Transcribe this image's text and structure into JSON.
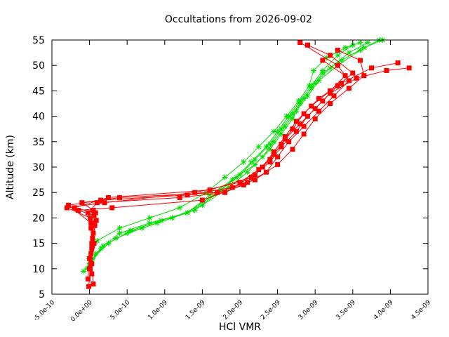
{
  "chart_data": {
    "type": "line",
    "title": "Occultations from 2026-09-02",
    "xlabel": "HCl VMR",
    "ylabel": "Altitude (km)",
    "xlim": [
      -5e-10,
      4.5e-09
    ],
    "ylim": [
      5,
      55
    ],
    "x_ticks": [
      -5e-10,
      0,
      5e-10,
      1e-09,
      1.5e-09,
      2e-09,
      2.5e-09,
      3e-09,
      3.5e-09,
      4e-09,
      4.5e-09
    ],
    "x_tick_labels": [
      "-5.0e-10",
      "0.0e+00",
      "5.0e-10",
      "1.0e-09",
      "1.5e-09",
      "2.0e-09",
      "2.5e-09",
      "3.0e-09",
      "3.5e-09",
      "4.0e-09",
      "4.5e-09"
    ],
    "y_ticks": [
      5,
      10,
      15,
      20,
      25,
      30,
      35,
      40,
      45,
      50,
      55
    ],
    "y_tick_labels": [
      "5",
      "10",
      "15",
      "20",
      "25",
      "30",
      "35",
      "40",
      "45",
      "50",
      "55"
    ],
    "grid": false,
    "legend": "none",
    "colors": {
      "green": "#00e000",
      "red": "#ff0000"
    },
    "series": [
      {
        "color": "green",
        "marker": "star",
        "x": [
          -8e-11,
          0,
          1.5e-10,
          4e-10,
          8e-10,
          1.3e-09,
          1.7e-09,
          1.95e-09,
          2.15e-09,
          2.35e-09,
          2.5e-09,
          2.65e-09,
          2.8e-09,
          2.95e-09,
          3.1e-09,
          3.3e-09,
          3.5e-09
        ],
        "y": [
          9.5,
          11,
          14,
          17,
          19,
          21,
          25,
          28,
          31,
          34,
          37,
          40,
          43,
          46,
          49,
          52,
          54
        ]
      },
      {
        "color": "green",
        "marker": "star",
        "x": [
          -3e-11,
          4e-11,
          2.5e-10,
          5.5e-10,
          9.5e-10,
          1.4e-09,
          1.75e-09,
          2e-09,
          2.2e-09,
          2.4e-09,
          2.55e-09,
          2.7e-09,
          2.85e-09,
          3e-09,
          3.2e-09,
          3.45e-09,
          3.7e-09
        ],
        "y": [
          10,
          12,
          15,
          17.5,
          19.5,
          21.5,
          25.5,
          28.5,
          31.5,
          34.5,
          37.5,
          40.5,
          43.5,
          46.5,
          49.5,
          52.5,
          54.5
        ]
      },
      {
        "color": "green",
        "marker": "star",
        "x": [
          0,
          8e-11,
          3.5e-10,
          7e-10,
          1.1e-09,
          1.5e-09,
          1.85e-09,
          2.1e-09,
          2.3e-09,
          2.45e-09,
          2.6e-09,
          2.75e-09,
          2.9e-09,
          3.05e-09,
          3.3e-09,
          3.6e-09,
          3.85e-09
        ],
        "y": [
          10.5,
          13,
          16,
          18,
          20,
          22.5,
          26,
          29,
          32,
          35,
          38,
          41,
          44,
          47,
          50,
          53,
          55
        ]
      },
      {
        "color": "green",
        "marker": "star",
        "x": [
          2e-11,
          1.8e-10,
          5e-10,
          9e-10,
          1.3e-09,
          1.6e-09,
          1.9e-09,
          2.2e-09,
          2.4e-09,
          2.55e-09,
          2.7e-09,
          2.8e-09,
          2.95e-09,
          3.1e-09,
          3.35e-09,
          3.65e-09,
          3.9e-09
        ],
        "y": [
          11,
          14.5,
          17,
          19,
          21,
          24.5,
          27.5,
          30.5,
          33.5,
          36.5,
          39.5,
          42.5,
          45.5,
          48.5,
          51,
          53.5,
          55
        ]
      },
      {
        "color": "green",
        "marker": "star",
        "x": [
          -1e-11,
          1e-10,
          4e-10,
          8e-10,
          1.2e-09,
          1.55e-09,
          1.8e-09,
          2.05e-09,
          2.25e-09,
          2.45e-09,
          2.62e-09,
          2.78e-09,
          2.92e-09,
          2.98e-09,
          3.15e-09,
          3.4e-09,
          3.6e-09
        ],
        "y": [
          12,
          15.5,
          18,
          20,
          22,
          25,
          28,
          31,
          34,
          37,
          40,
          43,
          46,
          49,
          51.5,
          53.5,
          54.5
        ]
      },
      {
        "color": "red",
        "marker": "square",
        "x": [
          -1e-11,
          1e-11,
          3e-11,
          2e-11,
          -2e-11,
          1e-10,
          1.2e-09,
          1.8e-09,
          2.1e-09,
          2.3e-09,
          2.45e-09,
          2.6e-09,
          2.75e-09,
          2.95e-09,
          3.2e-09,
          3.4e-09,
          3.1e-09
        ],
        "y": [
          6.5,
          10,
          14,
          18,
          21,
          23,
          24,
          25,
          27,
          30,
          33,
          36,
          39,
          42,
          45,
          48,
          51
        ]
      },
      {
        "color": "red",
        "marker": "square",
        "x": [
          5e-11,
          3e-11,
          6e-11,
          2e-11,
          -2.8e-10,
          1.5e-10,
          1.3e-09,
          1.9e-09,
          2.2e-09,
          2.4e-09,
          2.55e-09,
          2.7e-09,
          2.85e-09,
          3.05e-09,
          3.35e-09,
          3.75e-09,
          4.1e-09
        ],
        "y": [
          7,
          11,
          15,
          19,
          22.5,
          23.5,
          24.5,
          26,
          28.5,
          31.5,
          34.5,
          37.5,
          40.5,
          43.5,
          46.5,
          49.5,
          50.5
        ]
      },
      {
        "color": "red",
        "marker": "square",
        "x": [
          -2e-11,
          0,
          4e-11,
          1e-11,
          -3e-10,
          2e-10,
          1.4e-09,
          2e-09,
          2.25e-09,
          2.45e-09,
          2.6e-09,
          2.8e-09,
          3e-09,
          3.2e-09,
          3.55e-09,
          3.95e-09,
          4.25e-09
        ],
        "y": [
          8,
          12,
          16,
          20,
          22,
          23,
          25,
          27,
          29.5,
          32.5,
          35.5,
          38.5,
          41.5,
          44.5,
          47.5,
          49,
          49.5
        ]
      },
      {
        "color": "red",
        "marker": "square",
        "x": [
          3e-11,
          2e-11,
          5e-11,
          6e-11,
          -1.5e-10,
          3e-10,
          1.5e-09,
          2.05e-09,
          2.35e-09,
          2.5e-09,
          2.65e-09,
          2.85e-09,
          3.05e-09,
          3.25e-09,
          3.45e-09,
          3.3e-09,
          2.8e-09
        ],
        "y": [
          9,
          13,
          17,
          20.5,
          21.5,
          22,
          23.5,
          26.5,
          29,
          32,
          35,
          38,
          41,
          44,
          47,
          50,
          54.5
        ]
      },
      {
        "color": "red",
        "marker": "square",
        "x": [
          0,
          4e-11,
          7e-11,
          8e-11,
          -2e-10,
          2.5e-10,
          1.6e-09,
          2.15e-09,
          2.4e-09,
          2.55e-09,
          2.75e-09,
          2.9e-09,
          3.1e-09,
          3.3e-09,
          3.5e-09,
          3.2e-09,
          2.9e-09
        ],
        "y": [
          10,
          14.5,
          18.5,
          21,
          22,
          24,
          25.5,
          28,
          31,
          34,
          37,
          40,
          43,
          46,
          48.5,
          52,
          54
        ]
      },
      {
        "color": "red",
        "marker": "square",
        "x": [
          2e-11,
          3e-11,
          9e-11,
          5e-11,
          -1e-10,
          4e-10,
          1.7e-09,
          2.2e-09,
          2.5e-09,
          2.7e-09,
          2.85e-09,
          3e-09,
          3.2e-09,
          3.45e-09,
          3.65e-09,
          3.6e-09,
          3.3e-09
        ],
        "y": [
          11,
          15,
          19.5,
          21.5,
          23,
          24,
          25,
          27.5,
          30.5,
          33.5,
          36.5,
          39.5,
          42.5,
          45.5,
          48,
          51,
          53
        ]
      }
    ]
  }
}
